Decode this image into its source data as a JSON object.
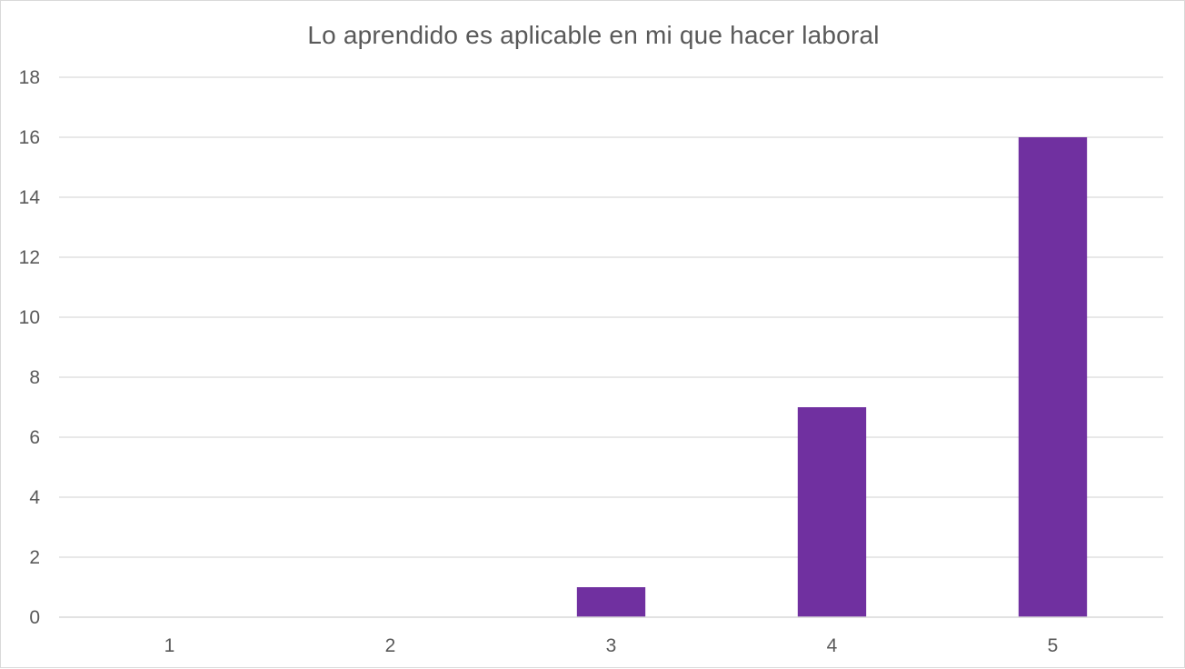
{
  "chart_data": {
    "type": "bar",
    "title": "Lo aprendido es aplicable en mi que hacer laboral",
    "categories": [
      "1",
      "2",
      "3",
      "4",
      "5"
    ],
    "values": [
      0,
      0,
      1,
      7,
      16
    ],
    "ylim": [
      0,
      18
    ],
    "yticks": [
      "0",
      "2",
      "4",
      "6",
      "8",
      "10",
      "12",
      "14",
      "16",
      "18"
    ],
    "xlabel": "",
    "ylabel": "",
    "grid": true,
    "legend": "none",
    "bar_color": "#7030a0",
    "grid_color": "#d9d9d9",
    "axis_color": "#d9d9d9",
    "text_color": "#595959"
  }
}
